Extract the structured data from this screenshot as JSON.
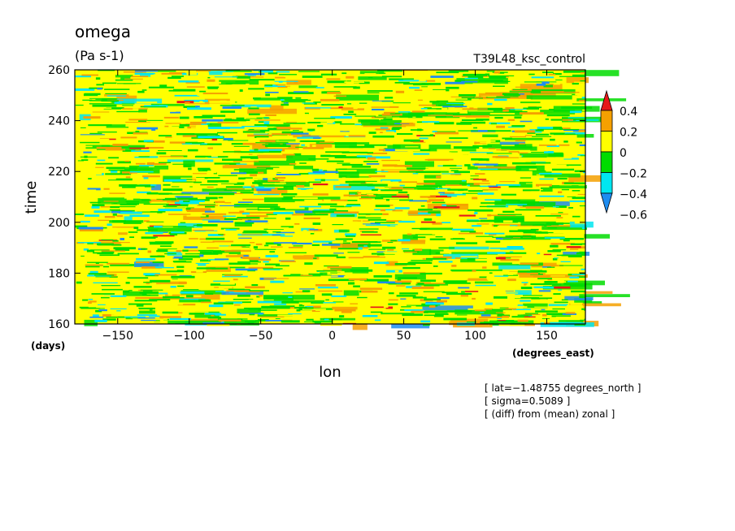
{
  "chart_data": {
    "type": "heatmap",
    "title": "omega",
    "units": "(Pa s-1)",
    "experiment": "T39L48_ksc_control",
    "xlabel": "lon",
    "xunits": "(degrees_east)",
    "ylabel": "time",
    "yunits": "(days)",
    "xlim": [
      -180,
      177
    ],
    "ylim": [
      160,
      260
    ],
    "xticks": [
      -150,
      -100,
      -50,
      0,
      50,
      100,
      150
    ],
    "xtick_labels": [
      "−150",
      "−100",
      "−50",
      "0",
      "50",
      "100",
      "150"
    ],
    "yticks": [
      160,
      180,
      200,
      220,
      240,
      260
    ],
    "ytick_labels": [
      "160",
      "180",
      "200",
      "220",
      "240",
      "260"
    ],
    "colorbar": {
      "levels": [
        -0.6,
        -0.4,
        -0.2,
        0,
        0.2,
        0.4
      ],
      "labels": [
        "−0.6",
        "−0.4",
        "−0.2",
        "0",
        "0.2",
        "0.4"
      ],
      "colors": [
        "#1e8cf0",
        "#00e6f0",
        "#00dc00",
        "#ffff00",
        "#f5a000",
        "#e61919"
      ],
      "extend": "both"
    },
    "field_description_colors": {
      "dominant": [
        "#ffff00",
        "#00dc00",
        "#f5a000"
      ],
      "minor": [
        "#00e6f0",
        "#1e8cf0"
      ]
    },
    "notes": [
      "[ lat=−1.48755 degrees_north ]",
      "[ sigma=0.5089 ]",
      "[ (diff) from (mean) zonal ]"
    ]
  }
}
